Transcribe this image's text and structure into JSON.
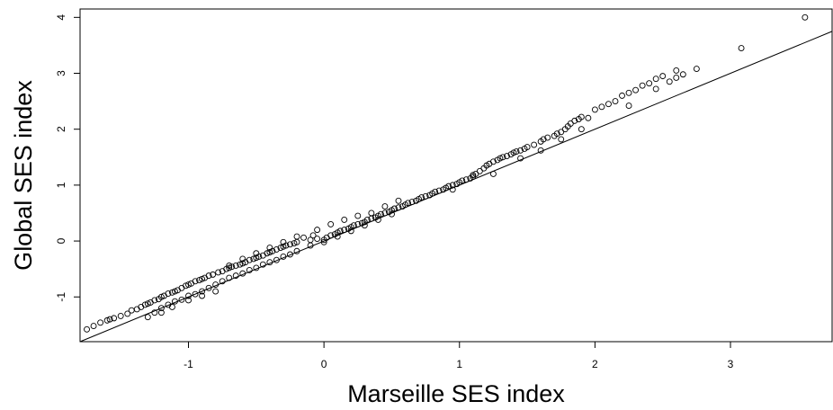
{
  "chart_data": {
    "type": "scatter",
    "title": "",
    "xlabel": "Marseille SES index",
    "ylabel": "Global SES index",
    "xlim": [
      -1.8,
      3.75
    ],
    "ylim": [
      -1.8,
      4.15
    ],
    "xticks": [
      -1,
      0,
      1,
      2,
      3
    ],
    "yticks": [
      -1,
      0,
      1,
      2,
      3,
      4
    ],
    "xtick_labels": [
      "-1",
      "0",
      "1",
      "2",
      "3"
    ],
    "ytick_labels": [
      "-1",
      "0",
      "1",
      "2",
      "3",
      "4"
    ],
    "grid": false,
    "legend": "none",
    "reference_line": {
      "slope": 1,
      "intercept": 0
    },
    "marker": "open-circle",
    "marker_color": "#000000",
    "points": [
      [
        -1.75,
        -1.58
      ],
      [
        -1.7,
        -1.52
      ],
      [
        -1.65,
        -1.46
      ],
      [
        -1.6,
        -1.42
      ],
      [
        -1.58,
        -1.4
      ],
      [
        -1.55,
        -1.38
      ],
      [
        -1.5,
        -1.34
      ],
      [
        -1.45,
        -1.3
      ],
      [
        -1.42,
        -1.24
      ],
      [
        -1.38,
        -1.22
      ],
      [
        -1.35,
        -1.18
      ],
      [
        -1.32,
        -1.14
      ],
      [
        -1.3,
        -1.12
      ],
      [
        -1.28,
        -1.1
      ],
      [
        -1.25,
        -1.06
      ],
      [
        -1.22,
        -1.04
      ],
      [
        -1.2,
        -1.0
      ],
      [
        -1.18,
        -0.98
      ],
      [
        -1.15,
        -0.94
      ],
      [
        -1.12,
        -0.92
      ],
      [
        -1.1,
        -0.9
      ],
      [
        -1.08,
        -0.88
      ],
      [
        -1.05,
        -0.84
      ],
      [
        -1.02,
        -0.8
      ],
      [
        -1.0,
        -0.78
      ],
      [
        -0.98,
        -0.76
      ],
      [
        -0.95,
        -0.72
      ],
      [
        -0.92,
        -0.7
      ],
      [
        -0.9,
        -0.68
      ],
      [
        -0.88,
        -0.66
      ],
      [
        -0.85,
        -0.62
      ],
      [
        -0.82,
        -0.6
      ],
      [
        -1.3,
        -1.36
      ],
      [
        -1.25,
        -1.28
      ],
      [
        -1.2,
        -1.2
      ],
      [
        -1.15,
        -1.14
      ],
      [
        -1.1,
        -1.08
      ],
      [
        -1.05,
        -1.05
      ],
      [
        -1.0,
        -0.98
      ],
      [
        -0.95,
        -0.95
      ],
      [
        -0.9,
        -0.9
      ],
      [
        -0.85,
        -0.84
      ],
      [
        -0.8,
        -0.78
      ],
      [
        -1.2,
        -1.28
      ],
      [
        -1.12,
        -1.18
      ],
      [
        -1.0,
        -1.06
      ],
      [
        -0.9,
        -0.98
      ],
      [
        -0.8,
        -0.9
      ],
      [
        -0.78,
        -0.56
      ],
      [
        -0.75,
        -0.54
      ],
      [
        -0.72,
        -0.5
      ],
      [
        -0.7,
        -0.48
      ],
      [
        -0.68,
        -0.46
      ],
      [
        -0.65,
        -0.44
      ],
      [
        -0.62,
        -0.42
      ],
      [
        -0.6,
        -0.4
      ],
      [
        -0.58,
        -0.38
      ],
      [
        -0.55,
        -0.34
      ],
      [
        -0.52,
        -0.32
      ],
      [
        -0.5,
        -0.3
      ],
      [
        -0.48,
        -0.28
      ],
      [
        -0.45,
        -0.26
      ],
      [
        -0.42,
        -0.22
      ],
      [
        -0.4,
        -0.2
      ],
      [
        -0.38,
        -0.18
      ],
      [
        -0.35,
        -0.15
      ],
      [
        -0.32,
        -0.12
      ],
      [
        -0.3,
        -0.1
      ],
      [
        -0.28,
        -0.08
      ],
      [
        -0.25,
        -0.06
      ],
      [
        -0.22,
        -0.04
      ],
      [
        -0.2,
        -0.02
      ],
      [
        -0.75,
        -0.72
      ],
      [
        -0.7,
        -0.66
      ],
      [
        -0.65,
        -0.62
      ],
      [
        -0.6,
        -0.58
      ],
      [
        -0.55,
        -0.52
      ],
      [
        -0.5,
        -0.48
      ],
      [
        -0.45,
        -0.42
      ],
      [
        -0.4,
        -0.38
      ],
      [
        -0.35,
        -0.34
      ],
      [
        -0.3,
        -0.28
      ],
      [
        -0.25,
        -0.24
      ],
      [
        -0.2,
        -0.18
      ],
      [
        -0.7,
        -0.44
      ],
      [
        -0.6,
        -0.32
      ],
      [
        -0.5,
        -0.22
      ],
      [
        -0.4,
        -0.12
      ],
      [
        -0.3,
        -0.02
      ],
      [
        -0.2,
        0.08
      ],
      [
        -0.15,
        0.06
      ],
      [
        -0.1,
        0.02
      ],
      [
        -0.08,
        0.1
      ],
      [
        -0.05,
        0.04
      ],
      [
        0.0,
        0.02
      ],
      [
        0.02,
        0.06
      ],
      [
        0.05,
        0.1
      ],
      [
        0.08,
        0.12
      ],
      [
        0.1,
        0.15
      ],
      [
        0.12,
        0.18
      ],
      [
        0.15,
        0.2
      ],
      [
        0.18,
        0.22
      ],
      [
        0.2,
        0.25
      ],
      [
        0.22,
        0.28
      ],
      [
        0.25,
        0.3
      ],
      [
        0.28,
        0.32
      ],
      [
        0.3,
        0.34
      ],
      [
        0.32,
        0.38
      ],
      [
        0.35,
        0.4
      ],
      [
        0.38,
        0.42
      ],
      [
        0.4,
        0.45
      ],
      [
        0.42,
        0.48
      ],
      [
        0.45,
        0.5
      ],
      [
        0.48,
        0.52
      ],
      [
        0.5,
        0.55
      ],
      [
        0.52,
        0.58
      ],
      [
        0.55,
        0.6
      ],
      [
        0.58,
        0.62
      ],
      [
        -0.1,
        -0.08
      ],
      [
        0.0,
        -0.02
      ],
      [
        0.1,
        0.08
      ],
      [
        0.2,
        0.18
      ],
      [
        0.3,
        0.28
      ],
      [
        0.4,
        0.38
      ],
      [
        0.5,
        0.48
      ],
      [
        -0.05,
        0.2
      ],
      [
        0.05,
        0.3
      ],
      [
        0.15,
        0.38
      ],
      [
        0.25,
        0.45
      ],
      [
        0.35,
        0.5
      ],
      [
        0.45,
        0.62
      ],
      [
        0.55,
        0.72
      ],
      [
        0.6,
        0.65
      ],
      [
        0.62,
        0.68
      ],
      [
        0.65,
        0.7
      ],
      [
        0.68,
        0.72
      ],
      [
        0.7,
        0.75
      ],
      [
        0.72,
        0.78
      ],
      [
        0.75,
        0.8
      ],
      [
        0.78,
        0.82
      ],
      [
        0.8,
        0.85
      ],
      [
        0.82,
        0.88
      ],
      [
        0.85,
        0.9
      ],
      [
        0.88,
        0.92
      ],
      [
        0.9,
        0.95
      ],
      [
        0.92,
        0.98
      ],
      [
        0.95,
        1.0
      ],
      [
        0.98,
        1.02
      ],
      [
        1.0,
        1.05
      ],
      [
        1.02,
        1.08
      ],
      [
        1.05,
        1.1
      ],
      [
        1.08,
        1.12
      ],
      [
        1.1,
        1.15
      ],
      [
        1.12,
        1.2
      ],
      [
        1.15,
        1.25
      ],
      [
        1.18,
        1.3
      ],
      [
        1.2,
        1.35
      ],
      [
        1.22,
        1.38
      ],
      [
        1.25,
        1.42
      ],
      [
        1.28,
        1.45
      ],
      [
        1.3,
        1.48
      ],
      [
        1.32,
        1.5
      ],
      [
        1.35,
        1.52
      ],
      [
        1.38,
        1.55
      ],
      [
        1.4,
        1.58
      ],
      [
        1.42,
        1.6
      ],
      [
        1.45,
        1.62
      ],
      [
        1.48,
        1.65
      ],
      [
        1.5,
        1.68
      ],
      [
        1.55,
        1.72
      ],
      [
        1.6,
        1.78
      ],
      [
        1.62,
        1.82
      ],
      [
        1.65,
        1.85
      ],
      [
        1.7,
        1.88
      ],
      [
        1.72,
        1.92
      ],
      [
        1.75,
        1.95
      ],
      [
        1.78,
        2.0
      ],
      [
        1.8,
        2.05
      ],
      [
        1.82,
        2.1
      ],
      [
        1.85,
        2.15
      ],
      [
        1.88,
        2.18
      ],
      [
        1.9,
        2.22
      ],
      [
        1.95,
        2.2
      ],
      [
        2.0,
        2.35
      ],
      [
        2.05,
        2.4
      ],
      [
        2.1,
        2.45
      ],
      [
        2.15,
        2.5
      ],
      [
        2.2,
        2.6
      ],
      [
        2.25,
        2.65
      ],
      [
        2.3,
        2.7
      ],
      [
        2.35,
        2.78
      ],
      [
        2.4,
        2.82
      ],
      [
        2.45,
        2.9
      ],
      [
        2.5,
        2.95
      ],
      [
        2.55,
        2.85
      ],
      [
        2.6,
        3.05
      ],
      [
        2.65,
        2.98
      ],
      [
        2.75,
        3.08
      ],
      [
        3.08,
        3.45
      ],
      [
        3.55,
        4.0
      ],
      [
        1.45,
        1.48
      ],
      [
        1.6,
        1.62
      ],
      [
        1.75,
        1.82
      ],
      [
        1.9,
        2.0
      ],
      [
        2.25,
        2.42
      ],
      [
        2.45,
        2.72
      ],
      [
        2.6,
        2.92
      ],
      [
        1.25,
        1.2
      ],
      [
        1.1,
        1.18
      ],
      [
        0.95,
        0.92
      ]
    ]
  }
}
